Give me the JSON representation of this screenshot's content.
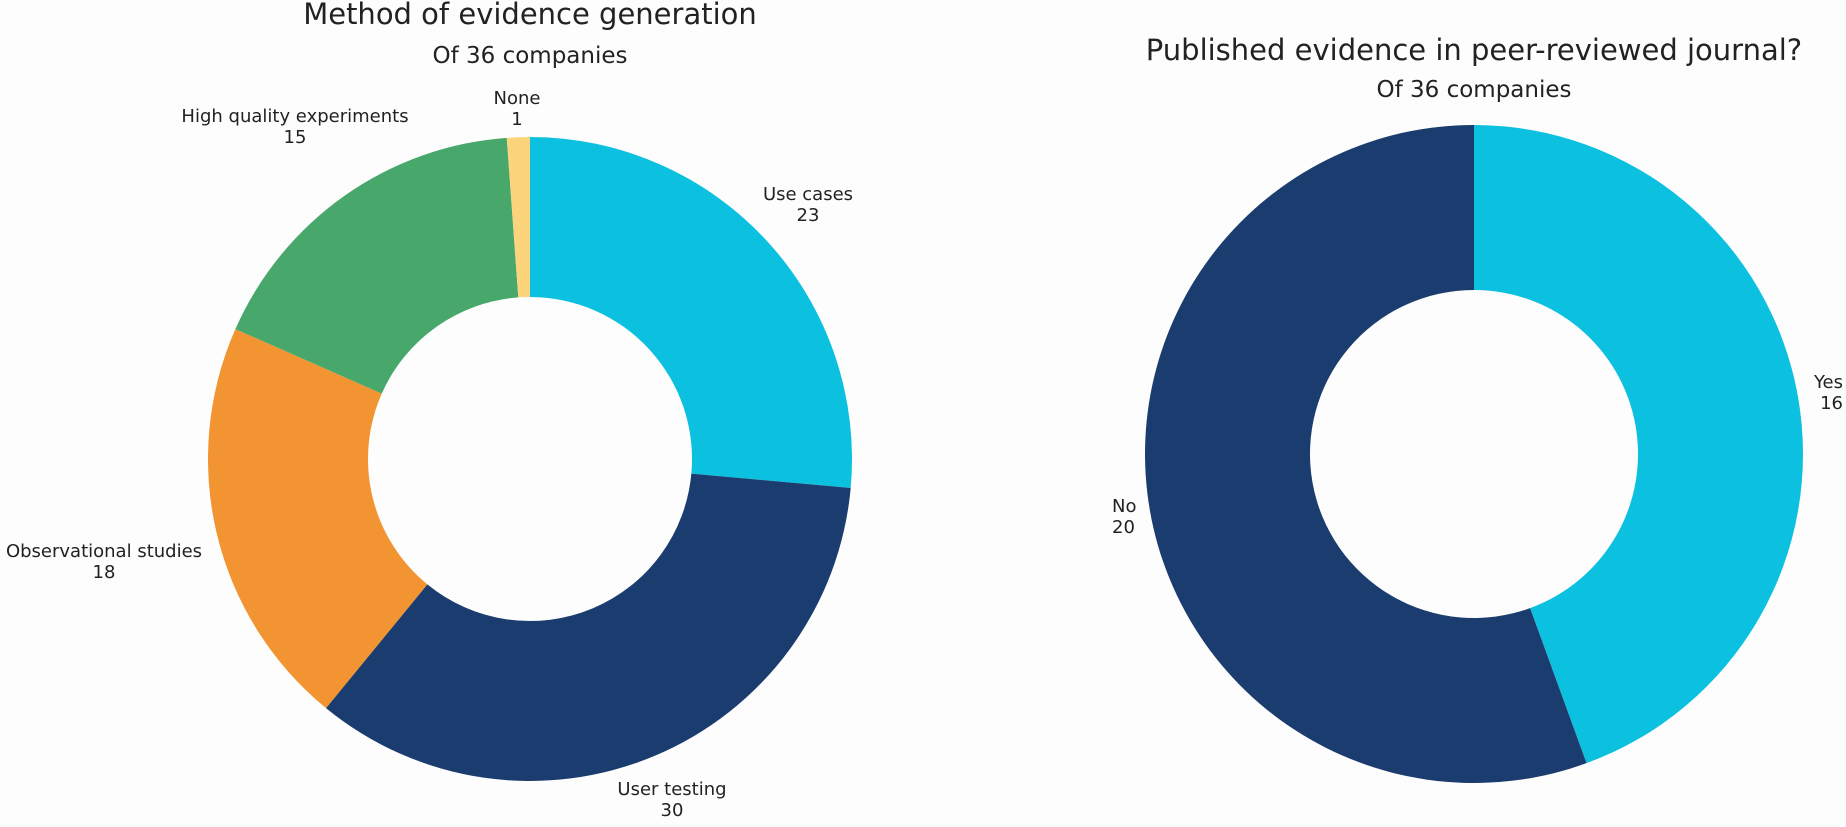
{
  "chart_data": [
    {
      "type": "donut",
      "title": "Method of evidence generation",
      "subtitle": "Of 36 companies",
      "categories": [
        "Use cases",
        "User testing",
        "Observational studies",
        "High quality experiments",
        "None"
      ],
      "values": [
        23,
        30,
        18,
        15,
        1
      ],
      "colors": [
        "#0cc0df",
        "#1b3c6e",
        "#f29432",
        "#48a86c",
        "#fbd47c"
      ],
      "start": "12 o'clock",
      "direction": "clockwise"
    },
    {
      "type": "donut",
      "title": "Published evidence in peer-reviewed journal?",
      "subtitle": "Of 36 companies",
      "categories": [
        "Yes",
        "No"
      ],
      "values": [
        16,
        20
      ],
      "colors": [
        "#0cc0df",
        "#1b3c6e"
      ],
      "start": "12 o'clock",
      "direction": "clockwise"
    }
  ]
}
